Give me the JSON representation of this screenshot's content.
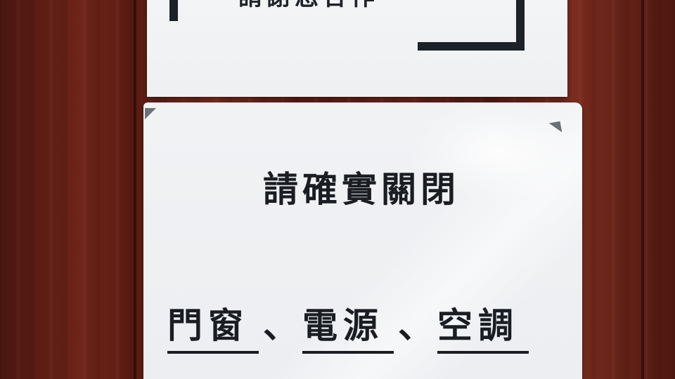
{
  "top_sign": {
    "partial_text": "請謝您合作"
  },
  "bottom_sign": {
    "heading": "請確實關閉",
    "items": [
      "門窗",
      "電源",
      "空調"
    ],
    "separator": "、"
  }
}
